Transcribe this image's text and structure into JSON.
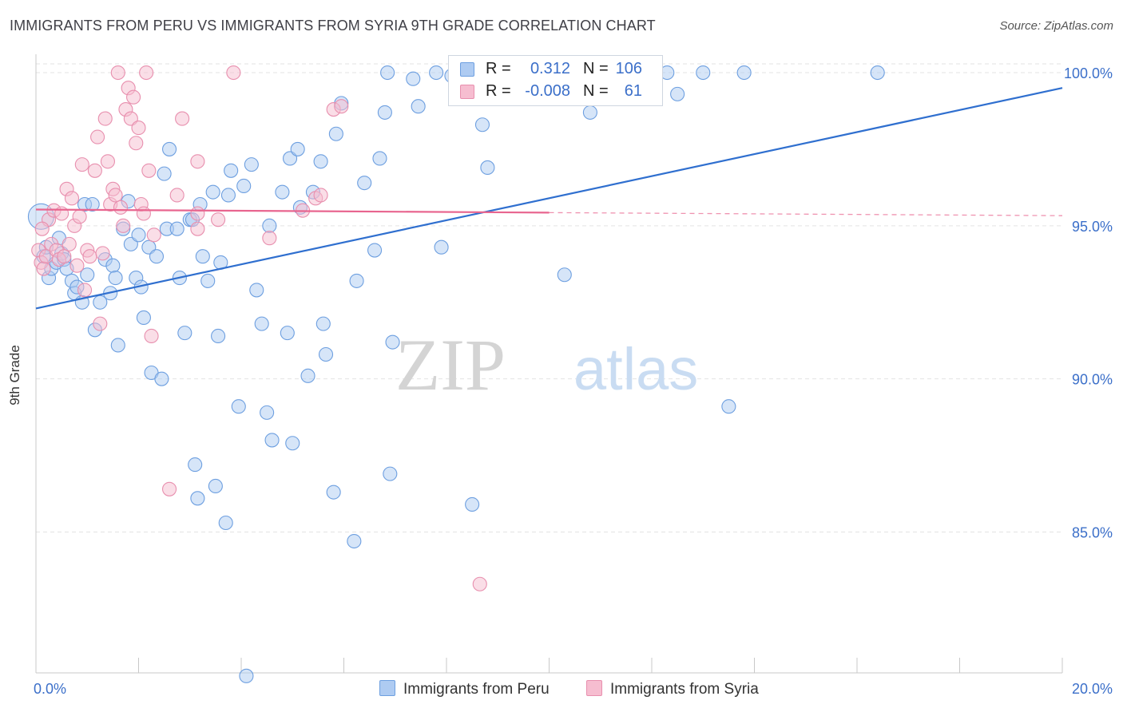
{
  "title": "IMMIGRANTS FROM PERU VS IMMIGRANTS FROM SYRIA 9TH GRADE CORRELATION CHART",
  "source": "Source: ZipAtlas.com",
  "watermark": {
    "zip": "ZIP",
    "atlas": "atlas"
  },
  "legend": {
    "rows": [
      {
        "r_label": "R =",
        "r_value": "0.312",
        "n_label": "N =",
        "n_value": "106"
      },
      {
        "r_label": "R =",
        "r_value": "-0.008",
        "n_label": "N =",
        "n_value": "61"
      }
    ]
  },
  "bottom_legend": [
    "Immigrants from Peru",
    "Immigrants from Syria"
  ],
  "colors": {
    "peru_fill": "#aecbf2",
    "peru_stroke": "#6d9fe0",
    "peru_line": "#2f6fcf",
    "syria_fill": "#f6bdd0",
    "syria_stroke": "#e88fae",
    "syria_line": "#e8658f",
    "tick_label": "#3b6fc9",
    "grid": "#e3e3e3"
  },
  "chart_data": {
    "type": "scatter",
    "title": "IMMIGRANTS FROM PERU VS IMMIGRANTS FROM SYRIA 9TH GRADE CORRELATION CHART",
    "xlabel": "",
    "ylabel": "9th Grade",
    "xlim": [
      0.0,
      20.0
    ],
    "ylim": [
      80.4,
      100.6
    ],
    "x_tick_labels": [
      "0.0%",
      "20.0%"
    ],
    "y_ticks": [
      85.0,
      90.0,
      95.0,
      100.0
    ],
    "y_tick_labels": [
      "85.0%",
      "90.0%",
      "95.0%",
      "100.0%"
    ],
    "series": [
      {
        "name": "Immigrants from Peru",
        "r": 0.312,
        "n": 106,
        "trend": {
          "x0": 0.0,
          "y0": 92.3,
          "x1": 20.0,
          "y1": 99.5,
          "solid_until": 20.0
        },
        "points": [
          [
            0.1,
            95.3
          ],
          [
            0.15,
            94.0
          ],
          [
            0.2,
            94.3
          ],
          [
            0.25,
            93.3
          ],
          [
            0.3,
            93.6
          ],
          [
            0.4,
            93.8
          ],
          [
            0.45,
            94.6
          ],
          [
            0.5,
            94.1
          ],
          [
            0.55,
            93.9
          ],
          [
            0.6,
            93.6
          ],
          [
            0.7,
            93.2
          ],
          [
            0.75,
            92.8
          ],
          [
            0.8,
            93.0
          ],
          [
            0.9,
            92.5
          ],
          [
            0.95,
            95.7
          ],
          [
            1.0,
            93.4
          ],
          [
            1.1,
            95.7
          ],
          [
            1.15,
            91.6
          ],
          [
            1.25,
            92.5
          ],
          [
            1.35,
            93.9
          ],
          [
            1.45,
            92.8
          ],
          [
            1.5,
            93.7
          ],
          [
            1.55,
            93.3
          ],
          [
            1.6,
            91.1
          ],
          [
            1.7,
            94.9
          ],
          [
            1.8,
            95.8
          ],
          [
            1.85,
            94.4
          ],
          [
            1.95,
            93.3
          ],
          [
            2.0,
            94.7
          ],
          [
            2.05,
            93.0
          ],
          [
            2.1,
            92.0
          ],
          [
            2.2,
            94.3
          ],
          [
            2.25,
            90.2
          ],
          [
            2.35,
            94.0
          ],
          [
            2.45,
            90.0
          ],
          [
            2.5,
            96.7
          ],
          [
            2.55,
            94.9
          ],
          [
            2.6,
            97.5
          ],
          [
            2.75,
            94.9
          ],
          [
            2.8,
            93.3
          ],
          [
            2.9,
            91.5
          ],
          [
            3.0,
            95.2
          ],
          [
            3.1,
            87.2
          ],
          [
            3.15,
            86.1
          ],
          [
            3.2,
            95.7
          ],
          [
            3.25,
            94.0
          ],
          [
            3.35,
            93.2
          ],
          [
            3.45,
            96.1
          ],
          [
            3.5,
            86.5
          ],
          [
            3.55,
            91.4
          ],
          [
            3.6,
            93.8
          ],
          [
            3.7,
            85.3
          ],
          [
            3.75,
            96.0
          ],
          [
            3.8,
            96.8
          ],
          [
            3.95,
            89.1
          ],
          [
            4.05,
            96.3
          ],
          [
            4.1,
            80.3
          ],
          [
            4.2,
            97.0
          ],
          [
            4.3,
            92.9
          ],
          [
            4.4,
            91.8
          ],
          [
            4.5,
            88.9
          ],
          [
            4.55,
            95.0
          ],
          [
            4.6,
            88.0
          ],
          [
            4.8,
            96.1
          ],
          [
            4.9,
            91.5
          ],
          [
            4.95,
            97.2
          ],
          [
            5.0,
            87.9
          ],
          [
            5.1,
            97.5
          ],
          [
            5.15,
            95.6
          ],
          [
            5.3,
            90.1
          ],
          [
            5.4,
            96.1
          ],
          [
            5.55,
            97.1
          ],
          [
            5.6,
            91.8
          ],
          [
            5.65,
            90.8
          ],
          [
            5.8,
            86.3
          ],
          [
            5.85,
            98.0
          ],
          [
            5.95,
            99.0
          ],
          [
            6.2,
            84.7
          ],
          [
            6.25,
            93.2
          ],
          [
            6.4,
            96.4
          ],
          [
            6.6,
            94.2
          ],
          [
            6.7,
            97.2
          ],
          [
            6.8,
            98.7
          ],
          [
            6.85,
            100.0
          ],
          [
            6.9,
            86.9
          ],
          [
            6.95,
            91.2
          ],
          [
            7.35,
            99.8
          ],
          [
            7.45,
            98.9
          ],
          [
            7.8,
            100.0
          ],
          [
            7.9,
            94.3
          ],
          [
            8.1,
            99.9
          ],
          [
            8.35,
            99.3
          ],
          [
            8.5,
            85.9
          ],
          [
            8.7,
            98.3
          ],
          [
            8.8,
            96.9
          ],
          [
            9.4,
            100.0
          ],
          [
            10.3,
            93.4
          ],
          [
            10.5,
            100.0
          ],
          [
            10.8,
            98.7
          ],
          [
            12.3,
            100.0
          ],
          [
            12.5,
            99.3
          ],
          [
            13.0,
            100.0
          ],
          [
            13.5,
            89.1
          ],
          [
            13.8,
            100.0
          ],
          [
            16.4,
            100.0
          ],
          [
            3.05,
            95.2
          ]
        ]
      },
      {
        "name": "Immigrants from Syria",
        "r": -0.008,
        "n": 61,
        "trend": {
          "x0": 0.0,
          "y0": 95.53,
          "x1": 20.0,
          "y1": 95.33,
          "solid_until": 10.0
        },
        "points": [
          [
            0.05,
            94.2
          ],
          [
            0.1,
            93.8
          ],
          [
            0.15,
            93.6
          ],
          [
            0.2,
            94.0
          ],
          [
            0.25,
            95.2
          ],
          [
            0.3,
            94.4
          ],
          [
            0.35,
            95.5
          ],
          [
            0.4,
            94.2
          ],
          [
            0.45,
            93.9
          ],
          [
            0.5,
            95.4
          ],
          [
            0.55,
            94.0
          ],
          [
            0.6,
            96.2
          ],
          [
            0.65,
            94.4
          ],
          [
            0.7,
            95.9
          ],
          [
            0.75,
            95.0
          ],
          [
            0.8,
            93.7
          ],
          [
            0.85,
            95.3
          ],
          [
            0.9,
            97.0
          ],
          [
            0.95,
            92.9
          ],
          [
            1.0,
            94.2
          ],
          [
            1.05,
            94.0
          ],
          [
            1.15,
            96.8
          ],
          [
            1.2,
            97.9
          ],
          [
            1.25,
            91.8
          ],
          [
            1.3,
            94.1
          ],
          [
            1.35,
            98.5
          ],
          [
            1.4,
            97.1
          ],
          [
            1.45,
            95.7
          ],
          [
            1.5,
            96.2
          ],
          [
            1.55,
            96.0
          ],
          [
            1.6,
            100.0
          ],
          [
            1.65,
            95.6
          ],
          [
            1.7,
            95.0
          ],
          [
            1.75,
            98.8
          ],
          [
            1.8,
            99.5
          ],
          [
            1.85,
            98.5
          ],
          [
            1.9,
            99.2
          ],
          [
            1.95,
            97.7
          ],
          [
            2.0,
            98.2
          ],
          [
            2.05,
            95.7
          ],
          [
            2.1,
            95.4
          ],
          [
            2.15,
            100.0
          ],
          [
            2.2,
            96.8
          ],
          [
            2.3,
            94.7
          ],
          [
            2.25,
            91.4
          ],
          [
            2.6,
            86.4
          ],
          [
            2.75,
            96.0
          ],
          [
            2.85,
            98.5
          ],
          [
            3.15,
            95.4
          ],
          [
            3.15,
            94.9
          ],
          [
            3.15,
            97.1
          ],
          [
            3.55,
            95.2
          ],
          [
            3.85,
            100.0
          ],
          [
            4.55,
            94.6
          ],
          [
            5.2,
            95.5
          ],
          [
            5.45,
            95.9
          ],
          [
            5.55,
            96.0
          ],
          [
            5.8,
            98.8
          ],
          [
            5.95,
            98.9
          ],
          [
            8.65,
            83.3
          ],
          [
            0.12,
            94.9
          ]
        ]
      }
    ]
  }
}
